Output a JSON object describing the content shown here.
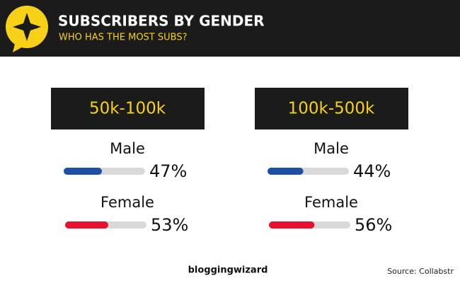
{
  "chart_data": {
    "type": "bar",
    "title": "SUBSCRIBERS BY GENDER",
    "subtitle": "WHO HAS THE MOST SUBS?",
    "xlim": [
      0,
      100
    ],
    "panels": [
      {
        "title": "50k-100k",
        "categories": [
          "Male",
          "Female"
        ],
        "values": [
          47,
          53
        ],
        "value_labels": [
          "47%",
          "53%"
        ],
        "colors": [
          "#1d4fa6",
          "#e5112f"
        ]
      },
      {
        "title": "100k-500k",
        "categories": [
          "Male",
          "Female"
        ],
        "values": [
          44,
          56
        ],
        "value_labels": [
          "44%",
          "56%"
        ],
        "colors": [
          "#1d4fa6",
          "#e5112f"
        ]
      }
    ],
    "brand": "bloggingwizard",
    "source": "Source: Collabstr"
  }
}
